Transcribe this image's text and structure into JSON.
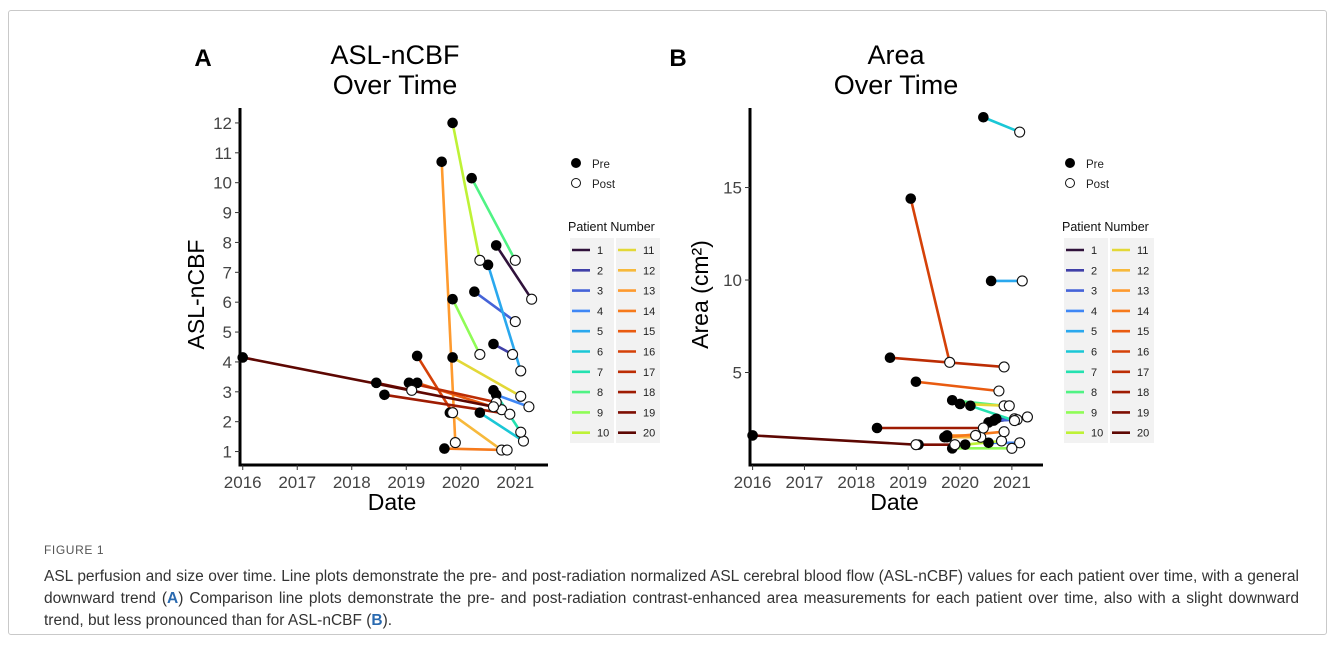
{
  "figure": {
    "label": "FIGURE 1",
    "caption_parts": [
      "ASL perfusion and size over time. Line plots demonstrate the pre- and post-radiation normalized ASL cerebral blood flow (ASL-nCBF) values for each patient over time, with a general downward trend (",
      "A",
      ") Comparison line plots demonstrate the pre- and post-radiation contrast-enhanced area measurements for each patient over time, also with a slight downward trend, but less pronounced than for ASL-nCBF (",
      "B",
      ")."
    ]
  },
  "legend": {
    "marker_pre": "Pre",
    "marker_post": "Post",
    "title": "Patient Number",
    "patients": [
      "1",
      "2",
      "3",
      "4",
      "5",
      "6",
      "7",
      "8",
      "9",
      "10",
      "11",
      "12",
      "13",
      "14",
      "15",
      "16",
      "17",
      "18",
      "19",
      "20"
    ],
    "colors": [
      "#30123b",
      "#4040a8",
      "#4563d8",
      "#3f87f5",
      "#2aa8ee",
      "#1ac7d6",
      "#24e1b0",
      "#50f384",
      "#8ffc56",
      "#bef236",
      "#e3d837",
      "#f7b93b",
      "#fe9a2e",
      "#f67a1c",
      "#e95b10",
      "#d54108",
      "#bc2d04",
      "#9e1b02",
      "#7e0e02",
      "#5d0702"
    ]
  },
  "chart_data": [
    {
      "type": "line",
      "panel": "A",
      "title": "ASL-nCBF\nOver Time",
      "xlabel": "Date",
      "ylabel": "ASL-nCBF",
      "x_ticks": [
        "2016",
        "2017",
        "2018",
        "2019",
        "2020",
        "2021"
      ],
      "y_ticks": [
        1,
        2,
        3,
        4,
        5,
        6,
        7,
        8,
        9,
        10,
        11,
        12
      ],
      "xlim": [
        2015.95,
        2021.6
      ],
      "ylim": [
        0.55,
        12.5
      ],
      "series": [
        {
          "patient": 1,
          "pre": [
            "2020.65",
            7.9
          ],
          "post": [
            "2021.3",
            6.1
          ]
        },
        {
          "patient": 2,
          "pre": [
            "2020.6",
            4.6
          ],
          "post": [
            "2020.95",
            4.25
          ]
        },
        {
          "patient": 3,
          "pre": [
            "2020.25",
            6.35
          ],
          "post": [
            "2021.0",
            5.35
          ]
        },
        {
          "patient": 4,
          "pre": [
            "2020.65",
            2.9
          ],
          "post": [
            "2021.25",
            2.5
          ]
        },
        {
          "patient": 5,
          "pre": [
            "2020.5",
            7.25
          ],
          "post": [
            "2021.1",
            3.7
          ]
        },
        {
          "patient": 6,
          "pre": [
            "2020.35",
            2.3
          ],
          "post": [
            "2021.15",
            1.35
          ]
        },
        {
          "patient": 7,
          "pre": [
            "2020.6",
            3.05
          ],
          "post": [
            "2021.1",
            1.65
          ]
        },
        {
          "patient": 8,
          "pre": [
            "2020.2",
            10.15
          ],
          "post": [
            "2021.0",
            7.4
          ]
        },
        {
          "patient": 9,
          "pre": [
            "2019.85",
            6.1
          ],
          "post": [
            "2020.35",
            4.25
          ]
        },
        {
          "patient": 10,
          "pre": [
            "2019.85",
            12.0
          ],
          "post": [
            "2020.35",
            7.4
          ]
        },
        {
          "patient": 11,
          "pre": [
            "2019.85",
            4.15
          ],
          "post": [
            "2021.1",
            2.85
          ]
        },
        {
          "patient": 12,
          "pre": [
            "2019.8",
            2.3
          ],
          "post": [
            "2020.75",
            1.05
          ]
        },
        {
          "patient": 13,
          "pre": [
            "2019.65",
            10.7
          ],
          "post": [
            "2019.9",
            1.3
          ]
        },
        {
          "patient": 14,
          "pre": [
            "2019.7",
            1.1
          ],
          "post": [
            "2020.85",
            1.05
          ]
        },
        {
          "patient": 15,
          "pre": [
            "2019.2",
            3.3
          ],
          "post": [
            "2020.75",
            2.4
          ]
        },
        {
          "patient": 16,
          "pre": [
            "2019.2",
            4.2
          ],
          "post": [
            "2019.85",
            2.3
          ]
        },
        {
          "patient": 17,
          "pre": [
            "2019.05",
            3.3
          ],
          "post": [
            "2020.65",
            2.65
          ]
        },
        {
          "patient": 18,
          "pre": [
            "2018.6",
            2.9
          ],
          "post": [
            "2020.9",
            2.25
          ]
        },
        {
          "patient": 19,
          "pre": [
            "2018.45",
            3.3
          ],
          "post": [
            "2019.1",
            3.05
          ]
        },
        {
          "patient": 20,
          "pre": [
            "2016.0",
            4.15
          ],
          "post": [
            "2020.6",
            2.5
          ]
        }
      ]
    },
    {
      "type": "line",
      "panel": "B",
      "title": "Area\nOver Time",
      "xlabel": "Date",
      "ylabel": "Area (cm²)",
      "x_ticks": [
        "2016",
        "2017",
        "2018",
        "2019",
        "2020",
        "2021"
      ],
      "y_ticks": [
        5,
        10,
        15
      ],
      "xlim": [
        2015.95,
        2021.6
      ],
      "ylim": [
        0,
        19.3
      ],
      "series": [
        {
          "patient": 1,
          "pre": [
            "2020.55",
            2.3
          ],
          "post": [
            "2021.3",
            2.6
          ]
        },
        {
          "patient": 2,
          "pre": [
            "2020.7",
            2.5
          ],
          "post": [
            "2021.05",
            2.5
          ]
        },
        {
          "patient": 3,
          "pre": [
            "2020.65",
            2.4
          ],
          "post": [
            "2021.1",
            2.45
          ]
        },
        {
          "patient": 4,
          "pre": [
            "2020.55",
            1.2
          ],
          "post": [
            "2021.15",
            1.2
          ]
        },
        {
          "patient": 5,
          "pre": [
            "2020.6",
            9.95
          ],
          "post": [
            "2021.2",
            9.95
          ]
        },
        {
          "patient": 6,
          "pre": [
            "2020.45",
            18.8
          ],
          "post": [
            "2021.15",
            18.0
          ]
        },
        {
          "patient": 7,
          "pre": [
            "2020.2",
            3.2
          ],
          "post": [
            "2021.05",
            2.4
          ]
        },
        {
          "patient": 8,
          "pre": [
            "2019.85",
            3.5
          ],
          "post": [
            "2020.85",
            3.2
          ]
        },
        {
          "patient": 9,
          "pre": [
            "2019.85",
            0.9
          ],
          "post": [
            "2021.0",
            0.9
          ]
        },
        {
          "patient": 10,
          "pre": [
            "2020.1",
            1.1
          ],
          "post": [
            "2020.8",
            1.3
          ]
        },
        {
          "patient": 11,
          "pre": [
            "2020.0",
            3.3
          ],
          "post": [
            "2020.95",
            3.2
          ]
        },
        {
          "patient": 12,
          "pre": [
            "2019.75",
            1.5
          ],
          "post": [
            "2020.4",
            1.5
          ]
        },
        {
          "patient": 13,
          "pre": [
            "2019.75",
            1.6
          ],
          "post": [
            "2020.3",
            1.6
          ]
        },
        {
          "patient": 14,
          "pre": [
            "2019.7",
            1.5
          ],
          "post": [
            "2020.85",
            1.8
          ]
        },
        {
          "patient": 15,
          "pre": [
            "2019.15",
            4.5
          ],
          "post": [
            "2020.75",
            4.0
          ]
        },
        {
          "patient": 16,
          "pre": [
            "2019.05",
            14.4
          ],
          "post": [
            "2019.8",
            5.55
          ]
        },
        {
          "patient": 17,
          "pre": [
            "2018.65",
            5.8
          ],
          "post": [
            "2020.85",
            5.3
          ]
        },
        {
          "patient": 18,
          "pre": [
            "2018.4",
            2.0
          ],
          "post": [
            "2020.45",
            2.0
          ]
        },
        {
          "patient": 19,
          "pre": [
            "2019.2",
            1.1
          ],
          "post": [
            "2019.9",
            1.1
          ]
        },
        {
          "patient": 20,
          "pre": [
            "2016.0",
            1.6
          ],
          "post": [
            "2019.15",
            1.1
          ]
        }
      ]
    }
  ]
}
